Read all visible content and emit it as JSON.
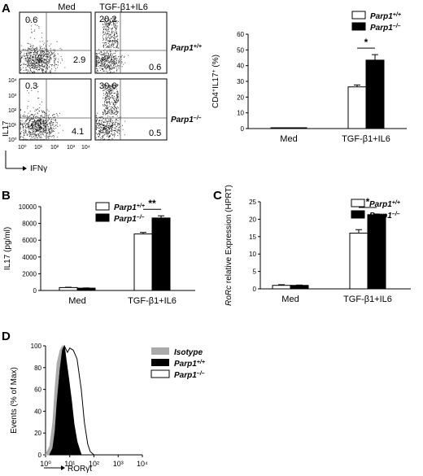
{
  "panel_labels": [
    "A",
    "B",
    "C",
    "D"
  ],
  "flow": {
    "col_headers": [
      "Med",
      "TGF-β1+IL6"
    ],
    "row_labels": [
      "Parp1+/+",
      "Parp1–/–"
    ],
    "quadrants": [
      {
        "tl": "0.6",
        "tr": "",
        "bl": "",
        "br": "2.9"
      },
      {
        "tl": "20.2",
        "tr": "",
        "bl": "",
        "br": "0.6"
      },
      {
        "tl": "0.3",
        "tr": "",
        "bl": "",
        "br": "4.1"
      },
      {
        "tl": "30.6",
        "tr": "",
        "bl": "",
        "br": "0.5"
      }
    ],
    "y_axis_label": "IL17",
    "x_axis_label": "IFNγ",
    "tick_labels": [
      "10⁰",
      "10¹",
      "10²",
      "10³",
      "10⁴"
    ]
  },
  "legend": {
    "wt": "Parp1+/+",
    "ko": "Parp1–/–"
  },
  "colors": {
    "wt": "#ffffff",
    "ko": "#000000",
    "isotype": "#aaaaaa"
  },
  "chart_data": [
    {
      "panel": "A",
      "type": "bar",
      "categories": [
        "Med",
        "TGF-β1+IL6"
      ],
      "series": [
        {
          "name": "Parp1+/+",
          "values": [
            0.2,
            26.5
          ],
          "errors": [
            0,
            1.2
          ]
        },
        {
          "name": "Parp1–/–",
          "values": [
            0.2,
            43.5
          ],
          "errors": [
            0,
            3.5
          ]
        }
      ],
      "ylabel": "CD4+IL17+ (%)",
      "ylim": [
        0,
        60
      ],
      "yticks": [
        0,
        10,
        20,
        30,
        40,
        50,
        60
      ],
      "significance": "*"
    },
    {
      "panel": "B",
      "type": "bar",
      "categories": [
        "Med",
        "TGF-β1+IL6"
      ],
      "series": [
        {
          "name": "Parp1+/+",
          "values": [
            350,
            6750
          ],
          "errors": [
            40,
            180
          ]
        },
        {
          "name": "Parp1–/–",
          "values": [
            280,
            8650
          ],
          "errors": [
            30,
            260
          ]
        }
      ],
      "ylabel": "IL17 (pg/ml)",
      "ylim": [
        0,
        10000
      ],
      "yticks": [
        0,
        2000,
        4000,
        6000,
        8000,
        10000
      ],
      "significance": "**"
    },
    {
      "panel": "C",
      "type": "bar",
      "categories": [
        "Med",
        "TGF-β1+IL6"
      ],
      "series": [
        {
          "name": "Parp1+/+",
          "values": [
            1.0,
            16.0
          ],
          "errors": [
            0.2,
            1.0
          ]
        },
        {
          "name": "Parp1–/–",
          "values": [
            1.0,
            21.3
          ],
          "errors": [
            0.1,
            0.2
          ]
        }
      ],
      "ylabel": "RoRc relative Expression (HPRT)",
      "ylim": [
        0,
        25
      ],
      "yticks": [
        0,
        5,
        10,
        15,
        20,
        25
      ],
      "significance": "*"
    },
    {
      "panel": "D",
      "type": "area",
      "series_names": [
        "Isotype",
        "Parp1+/+",
        "Parp1–/–"
      ],
      "ylabel": "Events (% of Max)",
      "xlabel": "RORγt",
      "ylim": [
        0,
        100
      ],
      "yticks": [
        0,
        20,
        40,
        60,
        80,
        100
      ],
      "xticks": [
        "10⁰",
        "10¹",
        "10²",
        "10³",
        "10⁴"
      ],
      "x_log": true,
      "histograms": [
        {
          "name": "Isotype",
          "x": [
            1.0,
            1.5,
            2.0,
            2.5,
            3.0,
            4.0,
            5.0,
            6.5,
            8.0,
            10,
            13,
            16
          ],
          "y": [
            0,
            8,
            30,
            62,
            84,
            96,
            100,
            80,
            50,
            22,
            6,
            0
          ]
        },
        {
          "name": "Parp1+/+",
          "x": [
            1.5,
            2.0,
            2.5,
            3.0,
            4.0,
            5.0,
            6.0,
            7.0,
            9.0,
            12,
            15,
            20,
            26,
            30
          ],
          "y": [
            0,
            6,
            22,
            48,
            78,
            95,
            100,
            88,
            70,
            48,
            28,
            12,
            4,
            0
          ]
        },
        {
          "name": "Parp1–/–",
          "x": [
            1.5,
            2.0,
            2.5,
            3.0,
            4.0,
            5.0,
            6.0,
            8.0,
            10,
            14,
            20,
            30,
            40,
            55,
            70,
            100
          ],
          "y": [
            0,
            6,
            20,
            45,
            78,
            96,
            100,
            94,
            98,
            96,
            88,
            60,
            30,
            10,
            3,
            0
          ]
        }
      ]
    }
  ]
}
